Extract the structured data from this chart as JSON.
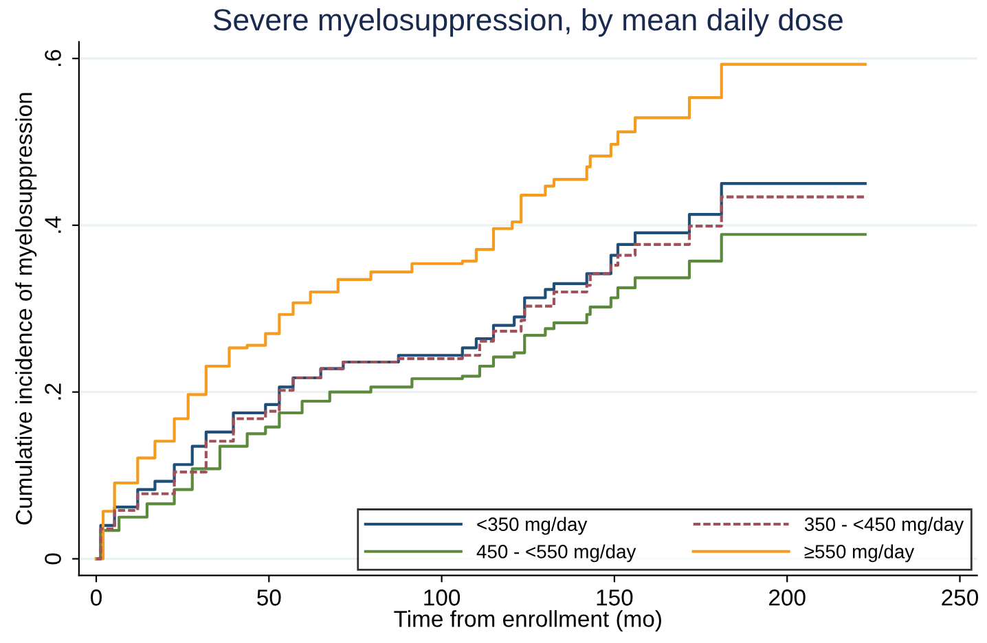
{
  "chart_data": {
    "type": "step",
    "title": "Severe myelosuppression, by mean daily dose",
    "xlabel": "Time from enrollment (mo)",
    "ylabel": "Cumulative incidence of myelosuppression",
    "xlim": [
      -5,
      255
    ],
    "ylim": [
      -0.02,
      0.62
    ],
    "xticks": [
      0,
      50,
      100,
      150,
      200,
      250
    ],
    "yticks": [
      {
        "value": 0,
        "label": "0"
      },
      {
        "value": 0.2,
        "label": ".2"
      },
      {
        "value": 0.4,
        "label": ".4"
      },
      {
        "value": 0.6,
        "label": ".6"
      }
    ],
    "grid": "y",
    "legend": "bottom right",
    "series": [
      {
        "name": "<350 mg/day",
        "color": "#1f4e79",
        "line_style": "solid",
        "x": [
          0,
          1.3,
          5.3,
          12,
          17,
          22.6,
          27.8,
          31.8,
          39.7,
          49,
          53,
          57,
          65,
          71.5,
          87.5,
          106,
          110,
          115,
          121,
          124,
          130,
          132.5,
          142,
          149,
          151,
          156,
          171.7,
          181,
          222.6
        ],
        "values": [
          0,
          0.04,
          0.062,
          0.083,
          0.093,
          0.113,
          0.135,
          0.152,
          0.175,
          0.185,
          0.206,
          0.217,
          0.228,
          0.236,
          0.244,
          0.253,
          0.264,
          0.28,
          0.29,
          0.313,
          0.323,
          0.33,
          0.342,
          0.364,
          0.377,
          0.391,
          0.413,
          0.45,
          0.45
        ]
      },
      {
        "name": "350 - <450 mg/day",
        "color": "#a0515a",
        "line_style": "dashed",
        "x": [
          0,
          1.3,
          5.3,
          12,
          22.6,
          31.8,
          39.7,
          49,
          53,
          57,
          65,
          71.5,
          87.5,
          106,
          111,
          115,
          123,
          124,
          132.5,
          142,
          143,
          149,
          151,
          156,
          171.7,
          181,
          222.6
        ],
        "values": [
          0,
          0.036,
          0.058,
          0.078,
          0.104,
          0.141,
          0.168,
          0.177,
          0.202,
          0.217,
          0.228,
          0.236,
          0.24,
          0.244,
          0.261,
          0.273,
          0.286,
          0.303,
          0.32,
          0.328,
          0.342,
          0.352,
          0.364,
          0.377,
          0.399,
          0.434,
          0.434
        ]
      },
      {
        "name": "450 - <550 mg/day",
        "color": "#5b8a3c",
        "line_style": "solid",
        "x": [
          0,
          1.3,
          6.6,
          14.7,
          22.6,
          27.8,
          35.8,
          43.7,
          49,
          53,
          59.6,
          67.6,
          79.5,
          91.4,
          106,
          111,
          115,
          121,
          124,
          130,
          132.5,
          142,
          143,
          149,
          151,
          156,
          171.7,
          181,
          222.6
        ],
        "values": [
          0,
          0.034,
          0.05,
          0.066,
          0.083,
          0.108,
          0.135,
          0.15,
          0.158,
          0.175,
          0.189,
          0.2,
          0.206,
          0.216,
          0.219,
          0.231,
          0.242,
          0.247,
          0.268,
          0.276,
          0.283,
          0.293,
          0.302,
          0.313,
          0.325,
          0.337,
          0.357,
          0.389,
          0.389
        ]
      },
      {
        "name": "≥550 mg/day",
        "color": "#f39c1f",
        "line_style": "solid",
        "x": [
          0,
          2,
          5.3,
          12,
          17,
          22.6,
          26.6,
          31.8,
          38.5,
          43.7,
          49,
          53,
          57,
          62,
          70,
          79.5,
          91.4,
          106,
          110,
          115,
          120.4,
          123,
          130,
          132.5,
          142,
          143,
          149,
          151,
          156,
          171.7,
          181,
          222.6
        ],
        "values": [
          0,
          0.057,
          0.091,
          0.121,
          0.141,
          0.168,
          0.197,
          0.231,
          0.253,
          0.256,
          0.27,
          0.293,
          0.307,
          0.32,
          0.335,
          0.344,
          0.354,
          0.357,
          0.371,
          0.396,
          0.404,
          0.436,
          0.447,
          0.455,
          0.47,
          0.483,
          0.497,
          0.512,
          0.529,
          0.553,
          0.593,
          0.593
        ]
      }
    ]
  }
}
